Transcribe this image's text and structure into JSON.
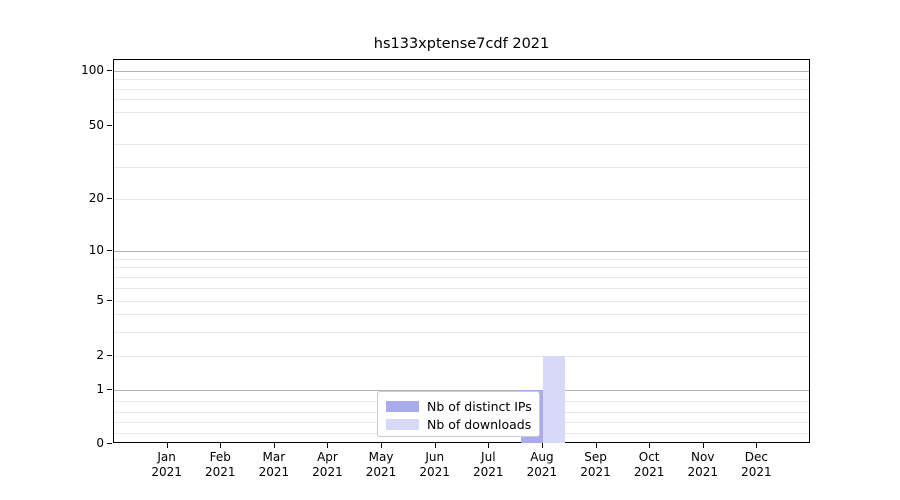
{
  "window": {
    "background_color": "#ffffff"
  },
  "chart_data": {
    "type": "bar",
    "title": "hs133xptense7cdf 2021",
    "categories": [
      "Jan",
      "Feb",
      "Mar",
      "Apr",
      "May",
      "Jun",
      "Jul",
      "Aug",
      "Sep",
      "Oct",
      "Nov",
      "Dec"
    ],
    "category_year": "2021",
    "series": [
      {
        "name": "Nb of distinct IPs",
        "color": "#aaaaee",
        "values": [
          0,
          0,
          0,
          0,
          0,
          0,
          0,
          1,
          0,
          0,
          0,
          0
        ]
      },
      {
        "name": "Nb of downloads",
        "color": "#d8d8f8",
        "values": [
          0,
          0,
          0,
          0,
          0,
          0,
          0,
          2,
          0,
          0,
          0,
          0
        ]
      }
    ],
    "xlabel": "",
    "ylabel": "",
    "yscale": "symlog",
    "yticks": [
      0,
      1,
      2,
      5,
      10,
      20,
      50,
      100
    ],
    "ylim": [
      0,
      115
    ],
    "grid": "horizontal",
    "major_grid_values": [
      1,
      10,
      100
    ],
    "minor_grid_values": [
      0.2,
      0.4,
      0.6,
      0.8,
      2,
      3,
      4,
      5,
      6,
      7,
      8,
      9,
      20,
      30,
      40,
      60,
      70,
      80,
      90
    ],
    "legend_position": "lower center",
    "colors": {
      "axis_spine": "#000000",
      "major_grid": "#b2b2b2",
      "minor_grid": "#e8e8e8",
      "legend_border": "#cccccc",
      "text": "#000000"
    }
  }
}
